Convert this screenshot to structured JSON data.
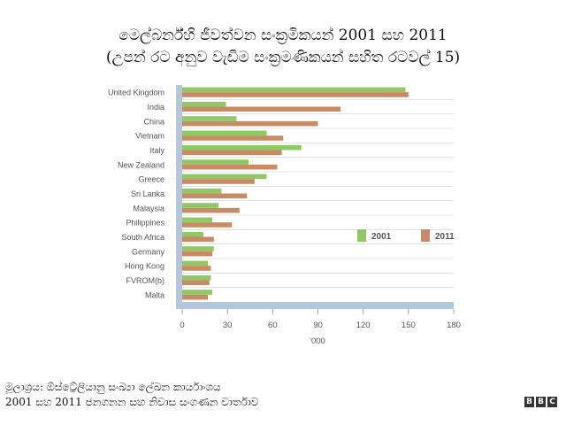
{
  "title_line1": "මෙල්බර්න්හි ජීවත්වන සංක්‍රමිකයන් 2001 සහ 2011",
  "title_line2": "(උපන් රට අනුව වැඩිම සංක්‍රමණිකයන් සහිත රටවල් 15)",
  "footer_line1": "මූලාශ්‍රය: ඕස්ට්‍රේලියානු සංඛ්‍යා ලේඛන කාර්යාංශය",
  "footer_line2": "2001 සහ 2011 ජනගනන සහ නිවාස සංගණන වාර්තාව",
  "logo": {
    "letters": [
      "B",
      "B",
      "C"
    ]
  },
  "colors": {
    "s2001": "#8fc865",
    "s2011": "#c98b63",
    "axis": "#b3c7dc",
    "grid": "#d0d0d0",
    "text": "#555555"
  },
  "chart_data": {
    "type": "bar",
    "orientation": "horizontal",
    "title": "මෙල්බර්න්හි ජීවත්වන සංක්‍රමිකයන් 2001 සහ 2011",
    "subtitle": "(උපන් රට අනුව වැඩිම සංක්‍රමණිකයන් සහිත රටවල් 15)",
    "xlabel": "'000",
    "ylabel": "",
    "xlim": [
      0,
      180
    ],
    "ticks": [
      "0",
      "30",
      "60",
      "90",
      "120",
      "150",
      "180"
    ],
    "grid": true,
    "legend": "right",
    "categories": [
      "United Kingdom",
      "India",
      "China",
      "Vietnam",
      "Italy",
      "New Zealand",
      "Greece",
      "Sri Lanka",
      "Malaysia",
      "Philippines",
      "South Africa",
      "Germany",
      "Hong Kong",
      "FVROM(b)",
      "Malta"
    ],
    "series": [
      {
        "name": "2001",
        "color": "#8fc865",
        "values": [
          148,
          29,
          36,
          56,
          79,
          44,
          56,
          26,
          24,
          20,
          14,
          21,
          17,
          19,
          20
        ]
      },
      {
        "name": "2011",
        "color": "#c98b63",
        "values": [
          150,
          105,
          90,
          67,
          66,
          63,
          48,
          43,
          38,
          33,
          21,
          20,
          19,
          18,
          17
        ]
      }
    ]
  }
}
